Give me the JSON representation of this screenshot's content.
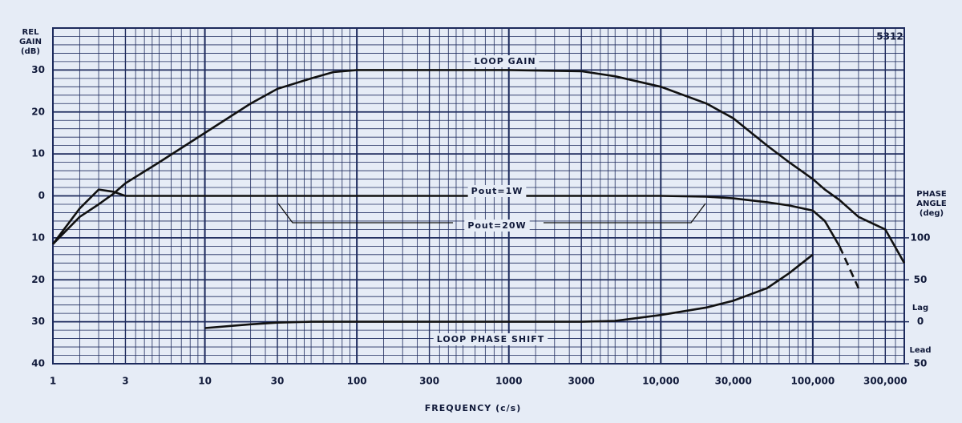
{
  "chart_data": {
    "type": "line",
    "log_x": true,
    "grid": true,
    "minor_grid": true,
    "corner_note": "5312",
    "ylabel": [
      "REL",
      "GAIN",
      "(dB)"
    ],
    "y2label": [
      "PHASE",
      "ANGLE",
      "(deg)"
    ],
    "y2_annotations": [
      "Lag",
      "Lead"
    ],
    "xlabel": "FREQUENCY (c/s)",
    "x": [
      1,
      1.5,
      2,
      2.5,
      3,
      5,
      10,
      20,
      30,
      50,
      70,
      100,
      1000,
      3000,
      5000,
      10000,
      20000,
      30000,
      50000,
      70000,
      100000,
      120000,
      150000,
      200000,
      300000,
      400000
    ],
    "series": [
      {
        "name": "LOOP GAIN",
        "color": "#111111",
        "dash": false,
        "values": [
          -11.5,
          -5,
          -2,
          0.5,
          3,
          8,
          15,
          22,
          25.5,
          28,
          29.5,
          30,
          30,
          29.7,
          28.5,
          26,
          22,
          18.5,
          12,
          8,
          4,
          1.5,
          -1,
          -5,
          -8,
          -16
        ]
      },
      {
        "name": "Pout=1W",
        "color": "#111111",
        "dash": false,
        "values": [
          -11.5,
          -3,
          1.5,
          1,
          0,
          0,
          0,
          0,
          0,
          0,
          0,
          0,
          0,
          0,
          0,
          0,
          -0.2,
          -0.6,
          -1.5,
          -2.3,
          -3.5,
          -6,
          -12,
          null,
          null,
          null
        ]
      },
      {
        "name": "Pout=20W",
        "color": "#111111",
        "dash": true,
        "values": [
          null,
          null,
          null,
          null,
          null,
          null,
          null,
          null,
          null,
          null,
          null,
          null,
          null,
          null,
          null,
          null,
          null,
          null,
          null,
          null,
          null,
          null,
          -12,
          -22,
          null,
          null
        ]
      },
      {
        "name": "LOOP PHASE SHIFT",
        "color": "#111111",
        "dash": false,
        "axis": "y2",
        "values": [
          null,
          null,
          null,
          null,
          null,
          null,
          -7.5,
          -3,
          -1,
          0,
          0,
          0,
          0,
          0,
          1,
          8,
          17,
          25,
          40,
          58,
          80,
          null,
          null,
          null,
          null,
          null
        ]
      }
    ],
    "xlim": [
      1,
      400000
    ],
    "xticks": [
      1,
      3,
      10,
      30,
      100,
      300,
      1000,
      3000,
      {
        "value": 10000,
        "label": "10,000"
      },
      {
        "value": 30000,
        "label": "30,000"
      },
      {
        "value": 100000,
        "label": "100,000"
      },
      {
        "value": 300000,
        "label": "300,000"
      }
    ],
    "ylim": [
      -40,
      40
    ],
    "yticks": [
      30,
      20,
      10,
      0,
      {
        "value": -10,
        "label": "10"
      },
      {
        "value": -20,
        "label": "20"
      },
      {
        "value": -30,
        "label": "30"
      },
      {
        "value": -40,
        "label": "40"
      }
    ],
    "y2lim": [
      -50,
      350
    ],
    "y2ticks": [
      100,
      50,
      0,
      {
        "value": -50,
        "label": "50"
      }
    ]
  }
}
